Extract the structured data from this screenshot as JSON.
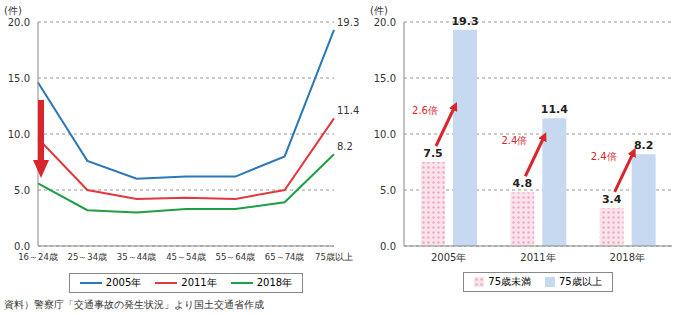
{
  "chart_data": [
    {
      "type": "line",
      "y_label": "(件)",
      "categories": [
        "16～24歳",
        "25～34歳",
        "35～44歳",
        "45～54歳",
        "55～64歳",
        "65～74歳",
        "75歳以上"
      ],
      "series": [
        {
          "name": "2005年",
          "color": "#2a78b8",
          "values": [
            14.6,
            7.6,
            6.0,
            6.2,
            6.2,
            8.0,
            19.3
          ],
          "value_labels": [
            null,
            null,
            null,
            null,
            null,
            null,
            "19.3"
          ]
        },
        {
          "name": "2011年",
          "color": "#e03a3e",
          "values": [
            9.6,
            5.0,
            4.2,
            4.3,
            4.2,
            5.0,
            11.4
          ],
          "value_labels": [
            null,
            null,
            null,
            null,
            null,
            null,
            "11.4"
          ]
        },
        {
          "name": "2018年",
          "color": "#1f9e45",
          "values": [
            5.6,
            3.2,
            3.0,
            3.3,
            3.3,
            3.9,
            8.2
          ],
          "value_labels": [
            null,
            null,
            null,
            null,
            null,
            null,
            "8.2"
          ]
        }
      ],
      "ylim": [
        0,
        20
      ],
      "yticks": [
        {
          "value": 0,
          "label": "0.0"
        },
        {
          "value": 5,
          "label": "5.0"
        },
        {
          "value": 10,
          "label": "10.0"
        },
        {
          "value": 15,
          "label": "15.0"
        },
        {
          "value": 20,
          "label": "20.0"
        }
      ],
      "grid": true,
      "legend": "bottom"
    },
    {
      "type": "bar",
      "y_label": "(件)",
      "categories": [
        "2005年",
        "2011年",
        "2018年"
      ],
      "series": [
        {
          "name": "75歳未満",
          "color": "#f3a9c4",
          "values": [
            7.5,
            4.8,
            3.4
          ]
        },
        {
          "name": "75歳以上",
          "color": "#c6d9f0",
          "values": [
            19.3,
            11.4,
            8.2
          ]
        }
      ],
      "ylim": [
        0,
        20
      ],
      "yticks": [
        {
          "value": 0,
          "label": "0.0"
        },
        {
          "value": 5,
          "label": "5.0"
        },
        {
          "value": 10,
          "label": "10.0"
        },
        {
          "value": 15,
          "label": "15.0"
        },
        {
          "value": 20,
          "label": "20.0"
        }
      ],
      "grid": true,
      "legend": "bottom",
      "data_labels": true,
      "annotations": [
        {
          "category": "2005年",
          "text": "2.6倍"
        },
        {
          "category": "2011年",
          "text": "2.4倍"
        },
        {
          "category": "2018年",
          "text": "2.4倍"
        }
      ]
    }
  ],
  "source": "資料）警察庁「交通事故の発生状況」より国土交通省作成"
}
